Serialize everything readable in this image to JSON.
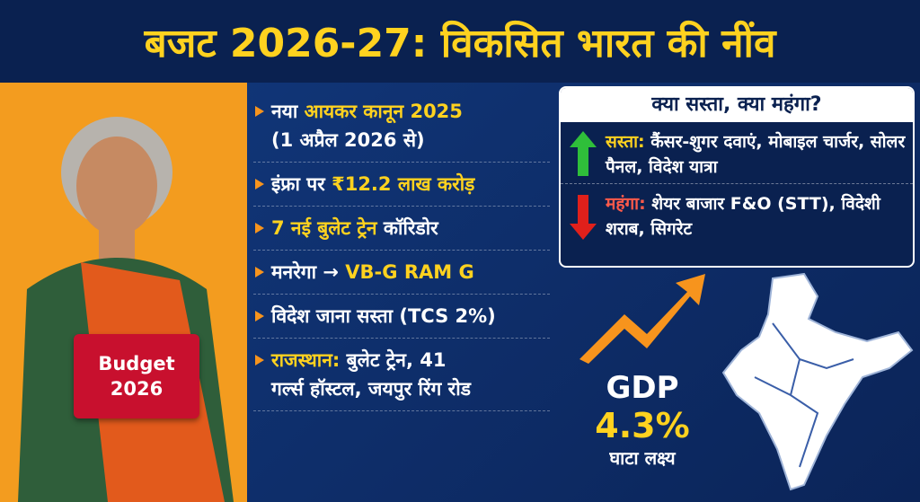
{
  "header": {
    "title": "बजट 2026-27: विकसित भारत की नींव"
  },
  "badge": {
    "lines": [
      "Budget",
      "2026"
    ]
  },
  "bullets": [
    {
      "lines": [
        [
          {
            "text": "नया "
          },
          {
            "text": "आयकर कानून 2025",
            "accent": true
          }
        ],
        [
          {
            "text": "(1 अप्रैल 2026 से)"
          }
        ]
      ]
    },
    {
      "lines": [
        [
          {
            "text": "इंफ्रा पर "
          },
          {
            "text": "₹12.2 लाख करोड़",
            "accent": true
          }
        ]
      ]
    },
    {
      "lines": [
        [
          {
            "text": "7 नई बुलेट ट्रेन",
            "accent": true
          },
          {
            "text": " कॉरिडोर"
          }
        ]
      ]
    },
    {
      "lines": [
        [
          {
            "text": "मनरेगा → "
          },
          {
            "text": "VB-G RAM G",
            "accent": true
          }
        ]
      ]
    },
    {
      "lines": [
        [
          {
            "text": "विदेश जाना सस्ता (TCS 2%)"
          }
        ]
      ]
    },
    {
      "lines": [
        [
          {
            "text": "राजस्थान:",
            "accent": true
          },
          {
            "text": " बुलेट ट्रेन, 41"
          }
        ],
        [
          {
            "text": "गर्ल्स हॉस्टल, जयपुर रिंग रोड"
          }
        ]
      ]
    }
  ],
  "price_box": {
    "heading": "क्या सस्ता, क्या महंगा?",
    "cheaper": {
      "label": "सस्ता:",
      "text": "कैंसर-शुगर दवाएं, मोबाइल चार्जर, सोलर पैनल, विदेश यात्रा"
    },
    "costlier": {
      "label": "महंगा:",
      "text": "शेयर बाजार F&O (STT), विदेशी शराब, सिगरेट"
    }
  },
  "gdp": {
    "label": "GDP",
    "value": "4.3%",
    "caption": "घाटा लक्ष्य"
  }
}
